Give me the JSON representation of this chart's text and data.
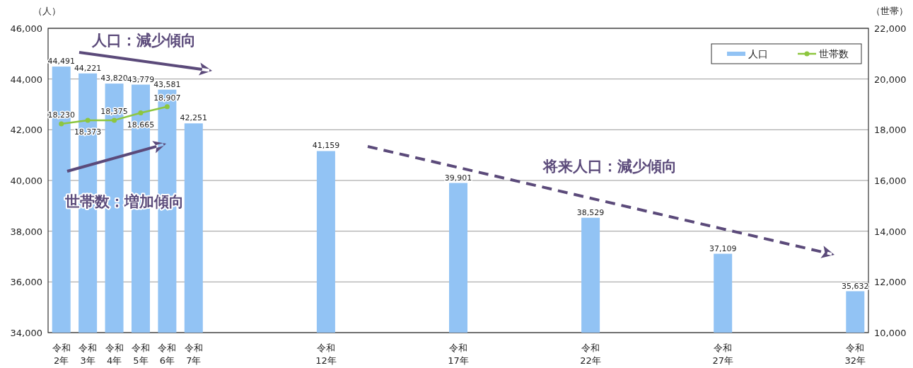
{
  "chart_data": {
    "type": "bar",
    "ylabel": "（人）",
    "y2label": "（世帯）",
    "categories": [
      "令和2年",
      "令和3年",
      "令和4年",
      "令和5年",
      "令和6年",
      "令和7年",
      null,
      null,
      null,
      null,
      "令和12年",
      null,
      null,
      null,
      null,
      "令和17年",
      null,
      null,
      null,
      null,
      "令和22年",
      null,
      null,
      null,
      null,
      "令和27年",
      null,
      null,
      null,
      null,
      "令和32年"
    ],
    "series": [
      {
        "name": "人口",
        "color": "#92c3f4",
        "values": [
          44491,
          44221,
          43820,
          43779,
          43581,
          42251,
          null,
          null,
          null,
          null,
          41159,
          null,
          null,
          null,
          null,
          39901,
          null,
          null,
          null,
          null,
          38529,
          null,
          null,
          null,
          null,
          37109,
          null,
          null,
          null,
          null,
          35632
        ],
        "value_labels": [
          "44,491",
          "44,221",
          "43,820",
          "43,779",
          "43,581",
          "42,251",
          null,
          null,
          null,
          null,
          "41,159",
          null,
          null,
          null,
          null,
          "39,901",
          null,
          null,
          null,
          null,
          "38,529",
          null,
          null,
          null,
          null,
          "37,109",
          null,
          null,
          null,
          null,
          "35,632"
        ]
      },
      {
        "name": "世帯数",
        "type": "line",
        "axis": "y2",
        "color": "#8dc63f",
        "marker": "circle",
        "values": [
          18230,
          18373,
          18375,
          18665,
          18907,
          null,
          null,
          null,
          null,
          null,
          null,
          null,
          null,
          null,
          null,
          null,
          null,
          null,
          null,
          null,
          null,
          null,
          null,
          null,
          null,
          null,
          null,
          null,
          null,
          null,
          null
        ],
        "value_labels": [
          "18,230",
          "18,373",
          "18,375",
          "18,665",
          "18,907",
          null,
          null,
          null,
          null,
          null,
          null,
          null,
          null,
          null,
          null,
          null,
          null,
          null,
          null,
          null,
          null,
          null,
          null,
          null,
          null,
          null,
          null,
          null,
          null,
          null,
          null
        ]
      }
    ],
    "ylim": [
      34000,
      46000
    ],
    "yticks": [
      {
        "value": 34000,
        "label": "34,000"
      },
      {
        "value": 36000,
        "label": "36,000"
      },
      {
        "value": 38000,
        "label": "38,000"
      },
      {
        "value": 40000,
        "label": "40,000"
      },
      {
        "value": 42000,
        "label": "42,000"
      },
      {
        "value": 44000,
        "label": "44,000"
      },
      {
        "value": 46000,
        "label": "46,000"
      }
    ],
    "y2lim": [
      10000,
      22000
    ],
    "y2ticks": [
      {
        "value": 10000,
        "label": "10,000"
      },
      {
        "value": 12000,
        "label": "12,000"
      },
      {
        "value": 14000,
        "label": "14,000"
      },
      {
        "value": 16000,
        "label": "16,000"
      },
      {
        "value": 18000,
        "label": "18,000"
      },
      {
        "value": 20000,
        "label": "20,000"
      },
      {
        "value": 22000,
        "label": "22,000"
      }
    ],
    "grid": "y",
    "legend": "top right",
    "annotations": [
      "人口：減少傾向",
      "世帯数：増加傾向",
      "将来人口：減少傾向"
    ]
  }
}
